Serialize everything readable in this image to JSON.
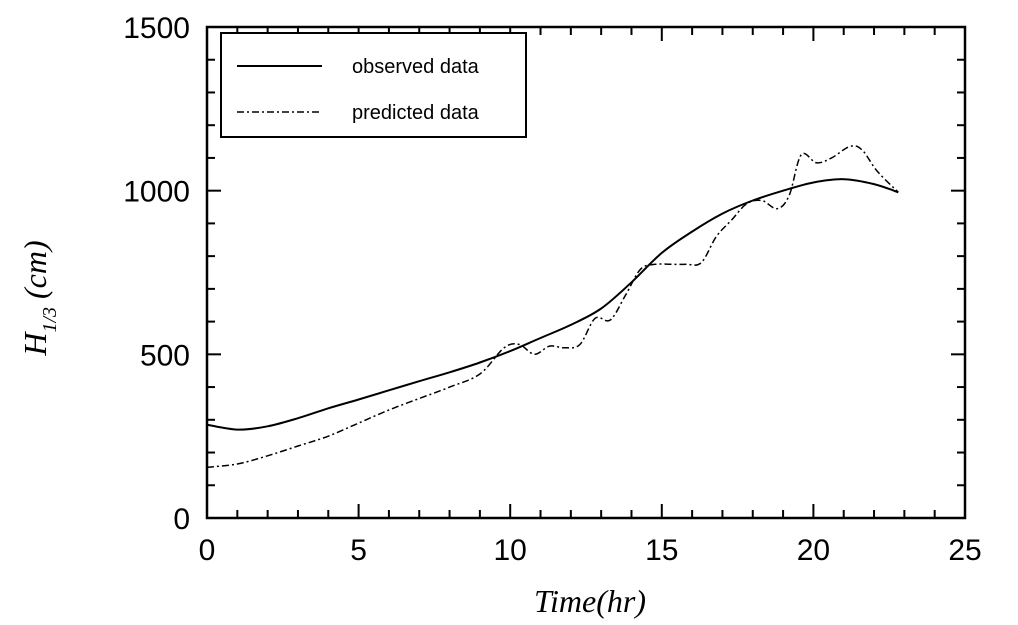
{
  "chart_data": {
    "type": "line",
    "title": "",
    "xlabel": "Time(hr)",
    "ylabel": {
      "main": "H",
      "sub": "1/3",
      "unit": " (cm)"
    },
    "xlim": [
      0,
      25
    ],
    "ylim": [
      0,
      1500
    ],
    "xticks": [
      "0",
      "5",
      "10",
      "15",
      "20",
      "25"
    ],
    "yticks": [
      "0",
      "500",
      "1000",
      "1500"
    ],
    "grid": false,
    "legend_position": "top-left",
    "series": [
      {
        "name": "observed data",
        "style": "solid",
        "color": "#000000",
        "x": [
          0,
          1,
          2,
          3,
          4,
          5,
          6,
          7,
          8,
          9,
          10,
          11,
          12,
          13,
          14,
          15,
          16,
          17,
          18,
          19,
          20,
          21,
          22,
          22.8
        ],
        "y": [
          285,
          270,
          280,
          305,
          335,
          362,
          390,
          418,
          445,
          475,
          510,
          550,
          590,
          640,
          720,
          810,
          875,
          930,
          970,
          1000,
          1025,
          1035,
          1020,
          995
        ]
      },
      {
        "name": "predicted data",
        "style": "dashdot",
        "color": "#000000",
        "x": [
          0,
          1,
          2,
          3,
          4,
          5,
          6,
          7,
          8,
          9,
          9.8,
          10.3,
          10.8,
          11.3,
          11.8,
          12.3,
          12.8,
          13.3,
          13.8,
          14.3,
          14.8,
          15.3,
          15.8,
          16.3,
          16.8,
          17.3,
          17.8,
          18.3,
          18.8,
          19.2,
          19.6,
          20.1,
          20.6,
          21.2,
          21.6,
          22.1,
          22.8
        ],
        "y": [
          155,
          165,
          190,
          220,
          250,
          290,
          330,
          365,
          400,
          440,
          520,
          530,
          500,
          525,
          520,
          530,
          610,
          605,
          680,
          760,
          775,
          775,
          775,
          780,
          860,
          910,
          960,
          970,
          945,
          985,
          1110,
          1085,
          1100,
          1135,
          1125,
          1060,
          995
        ]
      }
    ]
  }
}
